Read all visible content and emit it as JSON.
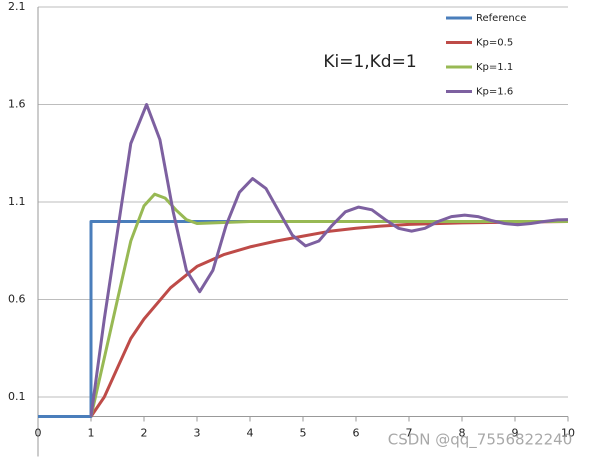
{
  "chart_data": {
    "type": "line",
    "annotation": "Ki=1,Kd=1",
    "watermark": "CSDN @qq_7556822240",
    "xlim": [
      0,
      10
    ],
    "xticks": [
      0,
      1,
      2,
      3,
      4,
      5,
      6,
      7,
      8,
      9,
      10
    ],
    "ylim": [
      0,
      2.1
    ],
    "yticks": [
      0.1,
      0.6,
      1.1,
      1.6,
      2.1
    ],
    "grid": true,
    "legend": "top-right",
    "series": [
      {
        "name": "Reference",
        "color": "#4a7ebb",
        "x": [
          0,
          1,
          1,
          10
        ],
        "values": [
          0,
          0,
          1,
          1
        ]
      },
      {
        "name": "Kp=0.5",
        "color": "#be4b48",
        "x": [
          1,
          1.25,
          1.5,
          1.75,
          2,
          2.5,
          3,
          3.5,
          4,
          4.5,
          5,
          5.5,
          6,
          6.5,
          7,
          8,
          9,
          10
        ],
        "values": [
          0,
          0.1,
          0.25,
          0.4,
          0.5,
          0.66,
          0.77,
          0.83,
          0.87,
          0.9,
          0.925,
          0.95,
          0.965,
          0.977,
          0.985,
          0.993,
          0.997,
          1.0
        ]
      },
      {
        "name": "Kp=1.1",
        "color": "#98b954",
        "x": [
          1,
          1.25,
          1.5,
          1.75,
          2,
          2.2,
          2.4,
          2.6,
          2.8,
          3,
          3.5,
          4,
          5,
          6,
          7,
          8,
          9,
          10
        ],
        "values": [
          0,
          0.3,
          0.6,
          0.9,
          1.08,
          1.14,
          1.12,
          1.06,
          1.01,
          0.99,
          0.995,
          1.0,
          1.0,
          1.0,
          1.0,
          1.0,
          1.0,
          1.0
        ]
      },
      {
        "name": "Kp=1.6",
        "color": "#7d60a0",
        "x": [
          1,
          1.25,
          1.5,
          1.75,
          2.05,
          2.3,
          2.55,
          2.8,
          3.05,
          3.3,
          3.55,
          3.8,
          4.05,
          4.3,
          4.55,
          4.8,
          5.05,
          5.3,
          5.55,
          5.8,
          6.05,
          6.3,
          6.55,
          6.8,
          7.05,
          7.3,
          7.55,
          7.8,
          8.05,
          8.3,
          8.55,
          8.8,
          9.05,
          9.3,
          9.55,
          9.8,
          10
        ],
        "values": [
          0,
          0.5,
          0.95,
          1.4,
          1.6,
          1.42,
          1.05,
          0.75,
          0.64,
          0.75,
          0.98,
          1.15,
          1.22,
          1.17,
          1.05,
          0.93,
          0.875,
          0.9,
          0.98,
          1.05,
          1.074,
          1.06,
          1.01,
          0.965,
          0.951,
          0.965,
          1.0,
          1.025,
          1.033,
          1.025,
          1.005,
          0.99,
          0.983,
          0.99,
          1.0,
          1.008,
          1.01
        ]
      }
    ]
  }
}
